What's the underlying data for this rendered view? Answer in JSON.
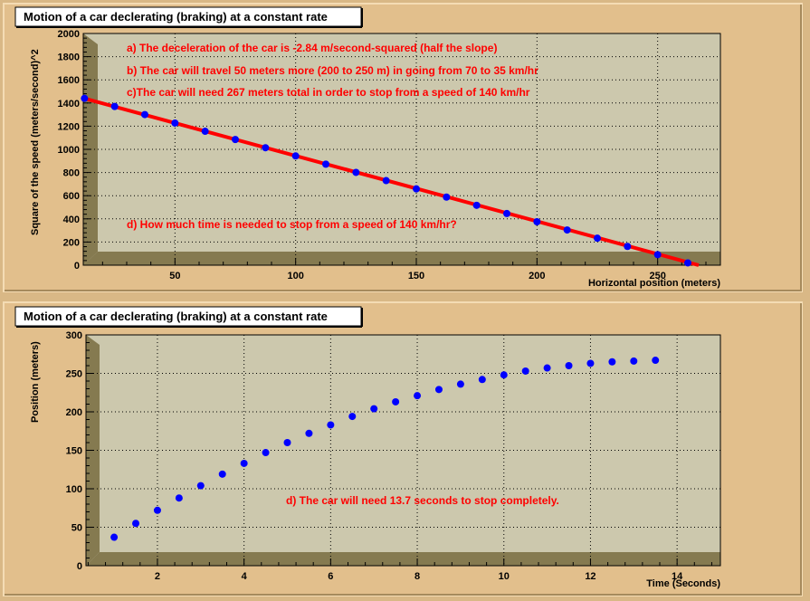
{
  "colors": {
    "canvas": "#d9b886",
    "panel": "#e2bf8c",
    "plot_face": "#ccc8ad",
    "frame_shadow": "#857a50",
    "points": "#0000ff",
    "fit_line": "#ff0000",
    "annotation": "#ff0000"
  },
  "chart_data": [
    {
      "type": "scatter",
      "title": "Motion of a car declerating (braking) at a constant rate",
      "xlabel": "Horizontal position (meters)",
      "ylabel": "Square of the speed (meters/second)^2",
      "xlim": [
        12,
        276
      ],
      "ylim": [
        0,
        2000
      ],
      "x_ticks": [
        50,
        100,
        150,
        200,
        250
      ],
      "y_ticks": [
        0,
        200,
        400,
        600,
        800,
        1000,
        1200,
        1400,
        1600,
        1800,
        2000
      ],
      "grid": true,
      "series": [
        {
          "marker": "circle",
          "x": [
            12.5,
            25,
            37.5,
            50,
            62.5,
            75,
            87.5,
            100,
            112.5,
            125,
            137.5,
            150,
            162.5,
            175,
            187.5,
            200,
            212.5,
            225,
            237.5,
            250,
            262.5
          ],
          "y": [
            1440,
            1370,
            1300,
            1227,
            1156,
            1085,
            1014,
            943,
            872,
            801,
            730,
            659,
            588,
            517,
            446,
            375,
            304,
            233,
            162,
            91,
            20
          ]
        }
      ],
      "fit_line": {
        "x": [
          12,
          267
        ],
        "y": [
          1442,
          0
        ]
      },
      "annotations": [
        "a) The deceleration of the car is -2.84 m/second-squared (half the slope)",
        "b) The car will travel 50 meters more (200 to 250 m) in going from 70 to 35 km/hr",
        "c)The car will need 267 meters total in order to stop from a speed of 140 km/hr",
        "d) How much time is needed to stop from a speed of 140 km/hr?"
      ]
    },
    {
      "type": "scatter",
      "title": "Motion of a car declerating (braking) at a constant rate",
      "xlabel": "Time (Seconds)",
      "ylabel": "Position (meters)",
      "xlim": [
        0.35,
        15
      ],
      "ylim": [
        0,
        300
      ],
      "x_ticks": [
        2,
        4,
        6,
        8,
        10,
        12,
        14
      ],
      "y_ticks": [
        0,
        50,
        100,
        150,
        200,
        250,
        300
      ],
      "grid": true,
      "series": [
        {
          "marker": "circle",
          "x": [
            1,
            1.5,
            2,
            2.5,
            3,
            3.5,
            4,
            4.5,
            5,
            5.5,
            6,
            6.5,
            7,
            7.5,
            8,
            8.5,
            9,
            9.5,
            10,
            10.5,
            11,
            11.5,
            12,
            12.5,
            13,
            13.5
          ],
          "y": [
            37,
            55,
            72,
            88,
            104,
            119,
            133,
            147,
            160,
            172,
            183,
            194,
            204,
            213,
            221,
            229,
            236,
            242,
            248,
            253,
            257,
            260,
            263,
            265,
            266,
            267
          ]
        }
      ],
      "annotations": [
        "d) The car will need 13.7 seconds to stop completely."
      ]
    }
  ]
}
